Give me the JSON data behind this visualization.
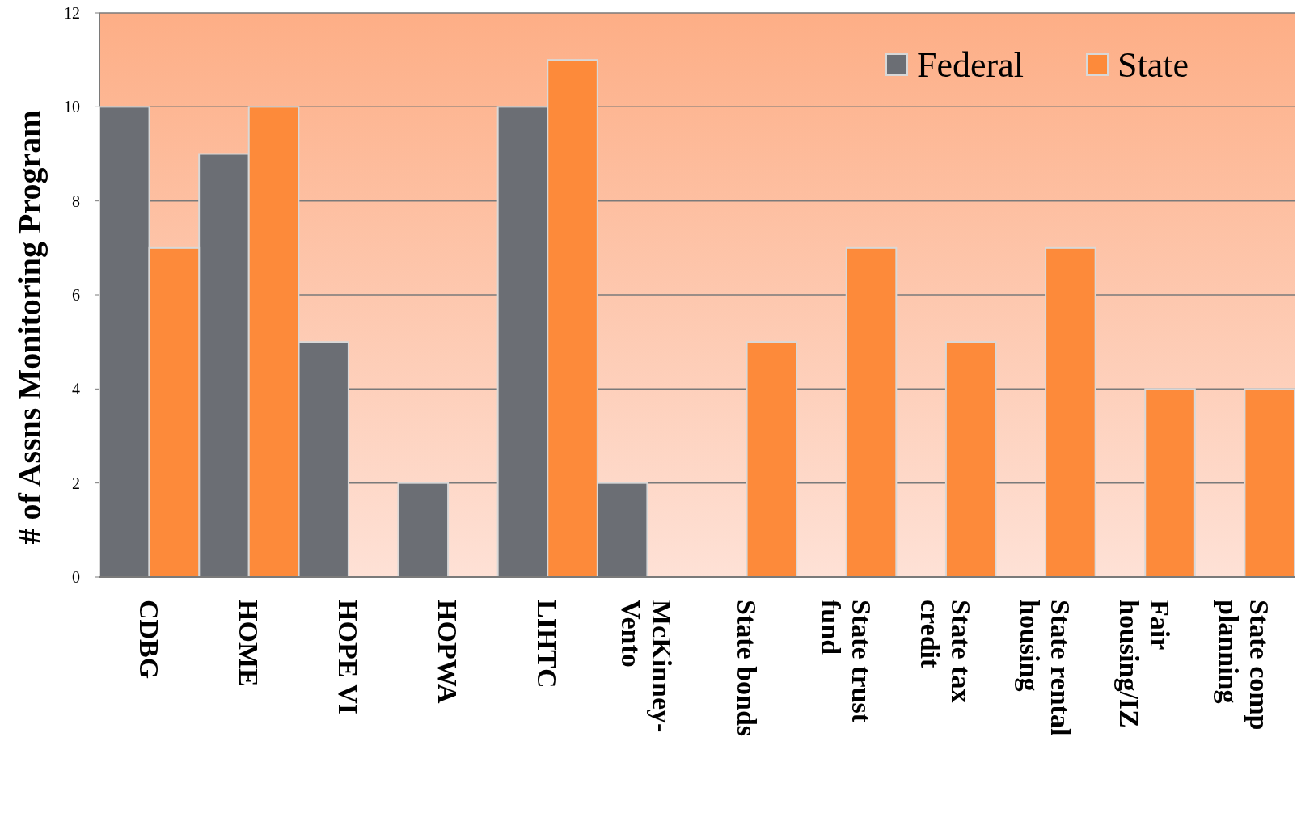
{
  "chart_data": {
    "type": "bar",
    "ylabel": "# of Assns Monitoring Program",
    "categories": [
      "CDBG",
      "HOME",
      "HOPE VI",
      "HOPWA",
      "LIHTC",
      "McKinney-Vento",
      "State bonds",
      "State trust fund",
      "State tax credit",
      "State rental housing",
      "Fair housing/IZ",
      "State comp planning"
    ],
    "series": [
      {
        "name": "Federal",
        "color": "#6b6e74",
        "values": [
          10,
          9,
          5,
          2,
          10,
          2,
          null,
          null,
          null,
          null,
          null,
          null
        ]
      },
      {
        "name": "State",
        "color": "#fd8a3a",
        "values": [
          7,
          10,
          null,
          null,
          11,
          null,
          5,
          7,
          5,
          7,
          4,
          4
        ]
      }
    ],
    "ylim": [
      0,
      12
    ],
    "yticks": [
      0,
      2,
      4,
      6,
      8,
      10,
      12
    ],
    "grid": "y",
    "legend": "top right"
  }
}
